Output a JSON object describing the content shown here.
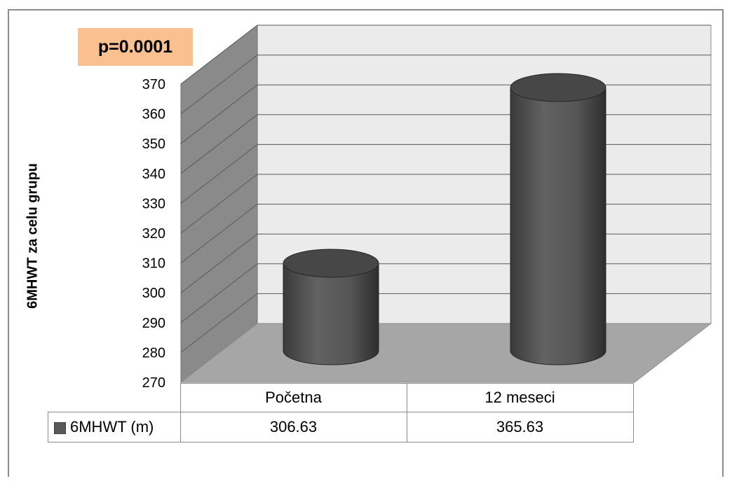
{
  "chart_data": {
    "type": "bar",
    "variant": "3d-cylinder",
    "categories": [
      "Početna",
      "12 meseci"
    ],
    "series": [
      {
        "name": "6MHWT (m)",
        "values": [
          306.63,
          365.63
        ],
        "color": "#595959"
      }
    ],
    "ylabel": "6MHWT za celu grupu",
    "ylim": [
      270,
      370
    ],
    "yticks": [
      "270",
      "280",
      "290",
      "300",
      "310",
      "320",
      "330",
      "340",
      "350",
      "360",
      "370"
    ],
    "grid": true,
    "data_table": true,
    "annotation": "p=0.0001",
    "annotation_color": "#fac090",
    "value_labels": [
      "306.63",
      "365.63"
    ]
  }
}
